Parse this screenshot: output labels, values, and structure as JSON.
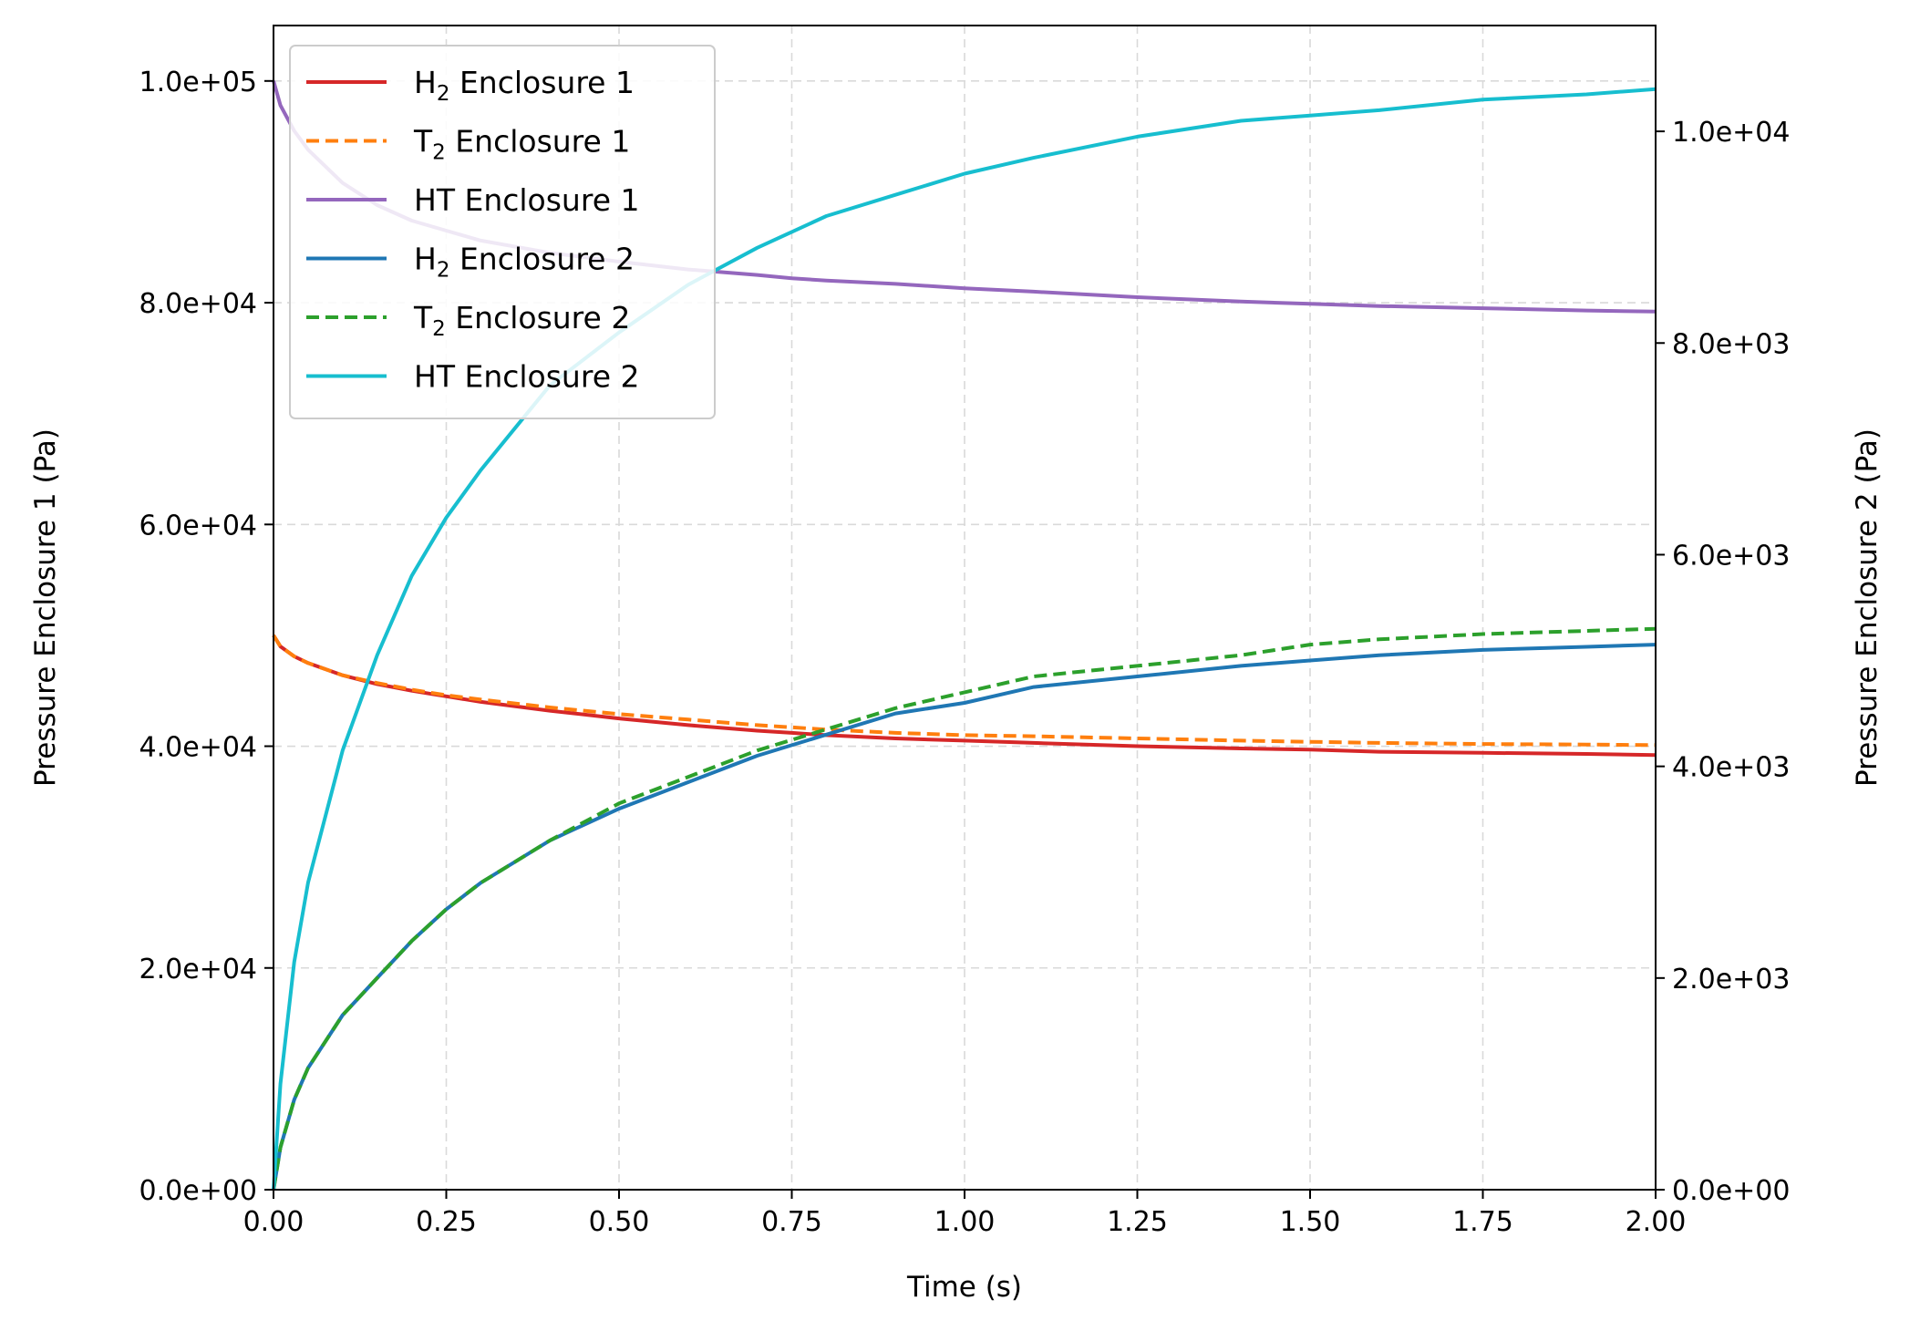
{
  "chart_data": {
    "type": "line",
    "title": "",
    "xlabel": "Time (s)",
    "ylabel_left": "Pressure Enclosure 1 (Pa)",
    "ylabel_right": "Pressure Enclosure 2 (Pa)",
    "xlim": [
      0,
      2.0
    ],
    "ylim_left": [
      0,
      105000
    ],
    "ylim_right": [
      0,
      11000
    ],
    "x_ticks": [
      "0.00",
      "0.25",
      "0.50",
      "0.75",
      "1.00",
      "1.25",
      "1.50",
      "1.75",
      "2.00"
    ],
    "x_tick_values": [
      0,
      0.25,
      0.5,
      0.75,
      1.0,
      1.25,
      1.5,
      1.75,
      2.0
    ],
    "y_left_ticks": [
      "0.0e+00",
      "2.0e+04",
      "4.0e+04",
      "6.0e+04",
      "8.0e+04",
      "1.0e+05"
    ],
    "y_left_tick_values": [
      0,
      20000,
      40000,
      60000,
      80000,
      100000
    ],
    "y_right_ticks": [
      "0.0e+00",
      "2.0e+03",
      "4.0e+03",
      "6.0e+03",
      "8.0e+03",
      "1.0e+04"
    ],
    "y_right_tick_values": [
      0,
      2000,
      4000,
      6000,
      8000,
      10000
    ],
    "grid": true,
    "legend_position": "top-left",
    "x": [
      0,
      0.01,
      0.03,
      0.05,
      0.1,
      0.15,
      0.2,
      0.25,
      0.3,
      0.4,
      0.5,
      0.6,
      0.7,
      0.75,
      0.8,
      0.9,
      1.0,
      1.1,
      1.25,
      1.4,
      1.5,
      1.6,
      1.75,
      1.9,
      2.0
    ],
    "series": [
      {
        "name": "H",
        "sub": "2",
        "suffix": " Enclosure 1",
        "axis": "left",
        "color": "#d62728",
        "dash": "solid",
        "values": [
          50000,
          49000,
          48100,
          47500,
          46400,
          45600,
          45000,
          44500,
          44000,
          43200,
          42500,
          41900,
          41400,
          41200,
          41000,
          40700,
          40500,
          40300,
          40000,
          39800,
          39700,
          39500,
          39400,
          39300,
          39200
        ]
      },
      {
        "name": "T",
        "sub": "2",
        "suffix": " Enclosure 1",
        "axis": "left",
        "color": "#ff7f0e",
        "dash": "dashed",
        "values": [
          50000,
          49000,
          48100,
          47500,
          46400,
          45700,
          45100,
          44600,
          44200,
          43500,
          42900,
          42400,
          41900,
          41700,
          41500,
          41200,
          41000,
          40900,
          40700,
          40500,
          40400,
          40300,
          40200,
          40150,
          40100
        ]
      },
      {
        "name": "HT",
        "sub": "",
        "suffix": " Enclosure 1",
        "axis": "left",
        "color": "#9467bd",
        "dash": "solid",
        "values": [
          100000,
          97800,
          95500,
          93800,
          90800,
          88800,
          87400,
          86500,
          85600,
          84500,
          83700,
          83000,
          82500,
          82200,
          82000,
          81700,
          81300,
          81000,
          80500,
          80100,
          79900,
          79700,
          79500,
          79300,
          79200
        ]
      },
      {
        "name": "H",
        "sub": "2",
        "suffix": " Enclosure 2",
        "axis": "right",
        "color": "#1f77b4",
        "dash": "solid",
        "values": [
          0,
          400,
          850,
          1150,
          1650,
          2000,
          2350,
          2650,
          2900,
          3300,
          3600,
          3850,
          4100,
          4200,
          4300,
          4500,
          4600,
          4750,
          4850,
          4950,
          5000,
          5050,
          5100,
          5130,
          5150
        ]
      },
      {
        "name": "T",
        "sub": "2",
        "suffix": " Enclosure 2",
        "axis": "right",
        "color": "#2ca02c",
        "dash": "dashed",
        "values": [
          0,
          400,
          850,
          1150,
          1650,
          2000,
          2350,
          2650,
          2900,
          3300,
          3650,
          3900,
          4150,
          4250,
          4350,
          4550,
          4700,
          4850,
          4950,
          5050,
          5150,
          5200,
          5250,
          5280,
          5300
        ]
      },
      {
        "name": "HT",
        "sub": "",
        "suffix": " Enclosure 2",
        "axis": "right",
        "color": "#17becf",
        "dash": "solid",
        "values": [
          0,
          1000,
          2150,
          2900,
          4150,
          5050,
          5800,
          6350,
          6800,
          7600,
          8100,
          8550,
          8900,
          9050,
          9200,
          9400,
          9600,
          9750,
          9950,
          10100,
          10150,
          10200,
          10300,
          10350,
          10400
        ]
      }
    ]
  }
}
